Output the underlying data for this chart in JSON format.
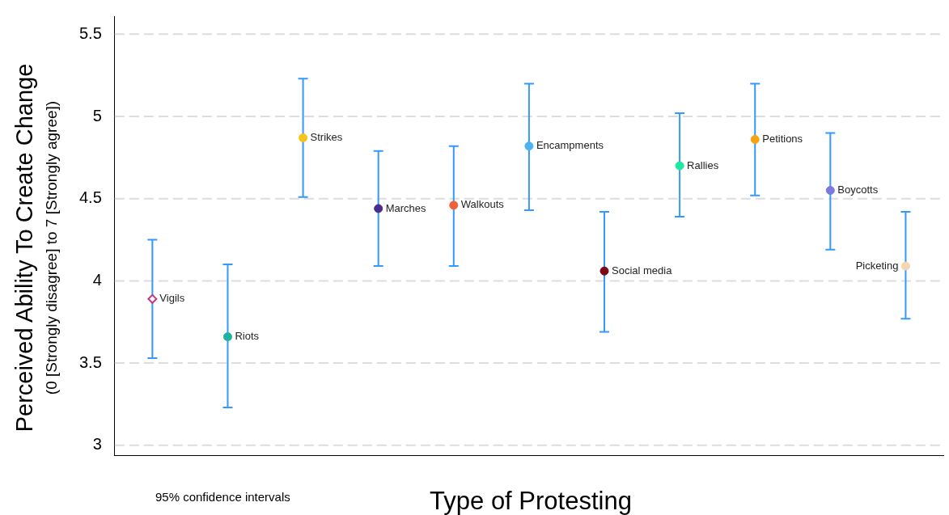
{
  "chart_data": {
    "type": "scatter",
    "xlabel": "Type of Protesting",
    "ylabel": "Perceived Ability To Create Change\n(0 [Strongly disagree] to 7 [Strongly agree])",
    "categories": [
      null,
      null,
      null,
      null,
      null,
      null,
      null,
      null,
      null,
      null,
      null
    ],
    "series": [
      {
        "name": "Vigils",
        "color": "#c8377f",
        "marker": "diamond",
        "values": [
          3.89,
          null,
          null,
          null,
          null,
          null,
          null,
          null,
          null,
          null,
          null
        ],
        "errors": [
          [
            3.53,
            4.25
          ],
          null,
          null,
          null,
          null,
          null,
          null,
          null,
          null,
          null,
          null
        ]
      },
      {
        "name": "Riots",
        "color": "#20b2a0",
        "values": [
          null,
          3.66,
          null,
          null,
          null,
          null,
          null,
          null,
          null,
          null,
          null
        ],
        "errors": [
          null,
          [
            3.23,
            4.1
          ],
          null,
          null,
          null,
          null,
          null,
          null,
          null,
          null,
          null
        ]
      },
      {
        "name": "Strikes",
        "color": "#f5c518",
        "values": [
          null,
          null,
          4.87,
          null,
          null,
          null,
          null,
          null,
          null,
          null,
          null
        ],
        "errors": [
          null,
          null,
          [
            4.51,
            5.23
          ],
          null,
          null,
          null,
          null,
          null,
          null,
          null,
          null
        ]
      },
      {
        "name": "Marches",
        "color": "#4b2a91",
        "values": [
          null,
          null,
          null,
          4.44,
          null,
          null,
          null,
          null,
          null,
          null,
          null
        ],
        "errors": [
          null,
          null,
          null,
          [
            4.09,
            4.79
          ],
          null,
          null,
          null,
          null,
          null,
          null,
          null
        ]
      },
      {
        "name": "Walkouts",
        "color": "#f0603a",
        "values": [
          null,
          null,
          null,
          null,
          4.46,
          null,
          null,
          null,
          null,
          null,
          null
        ],
        "errors": [
          null,
          null,
          null,
          null,
          [
            4.09,
            4.82
          ],
          null,
          null,
          null,
          null,
          null,
          null
        ]
      },
      {
        "name": "Encampments",
        "color": "#4db3f0",
        "values": [
          null,
          null,
          null,
          null,
          null,
          4.82,
          null,
          null,
          null,
          null,
          null
        ],
        "errors": [
          null,
          null,
          null,
          null,
          null,
          [
            4.43,
            5.2
          ],
          null,
          null,
          null,
          null,
          null
        ]
      },
      {
        "name": "Social media",
        "color": "#7a0a14",
        "values": [
          null,
          null,
          null,
          null,
          null,
          null,
          4.06,
          null,
          null,
          null,
          null
        ],
        "errors": [
          null,
          null,
          null,
          null,
          null,
          null,
          [
            3.69,
            4.42
          ],
          null,
          null,
          null,
          null
        ]
      },
      {
        "name": "Rallies",
        "color": "#1de9a0",
        "values": [
          null,
          null,
          null,
          null,
          null,
          null,
          null,
          4.7,
          null,
          null,
          null
        ],
        "errors": [
          null,
          null,
          null,
          null,
          null,
          null,
          null,
          [
            4.39,
            5.02
          ],
          null,
          null,
          null
        ]
      },
      {
        "name": "Petitions",
        "color": "#f5a30f",
        "values": [
          null,
          null,
          null,
          null,
          null,
          null,
          null,
          null,
          4.86,
          null,
          null
        ],
        "errors": [
          null,
          null,
          null,
          null,
          null,
          null,
          null,
          null,
          [
            4.52,
            5.2
          ],
          null,
          null
        ]
      },
      {
        "name": "Boycotts",
        "color": "#7b79e0",
        "values": [
          null,
          null,
          null,
          null,
          null,
          null,
          null,
          null,
          null,
          4.55,
          null
        ],
        "errors": [
          null,
          null,
          null,
          null,
          null,
          null,
          null,
          null,
          null,
          [
            4.19,
            4.9
          ],
          null
        ]
      },
      {
        "name": "Picketing",
        "color": "#f5d6b0",
        "values": [
          null,
          null,
          null,
          null,
          null,
          null,
          null,
          null,
          null,
          null,
          4.09
        ],
        "errors": [
          null,
          null,
          null,
          null,
          null,
          null,
          null,
          null,
          null,
          null,
          [
            3.77,
            4.42
          ]
        ]
      }
    ],
    "ylim": [
      2.94,
      5.61
    ],
    "yticks": [
      3,
      3.5,
      4,
      4.5,
      5,
      5.5
    ],
    "grid": "y",
    "legend": false,
    "marker": "circle",
    "tick_labels": "y",
    "annotations": [
      "95% confidence intervals"
    ]
  }
}
